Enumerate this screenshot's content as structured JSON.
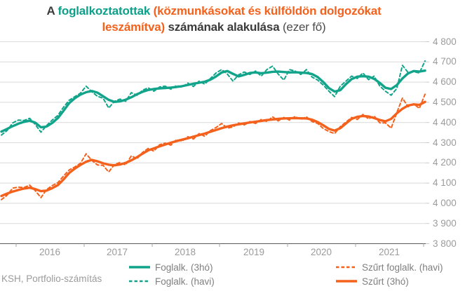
{
  "title": {
    "lines": [
      [
        {
          "text": "A ",
          "color": "#3b3b3b",
          "bold": true
        },
        {
          "text": "foglalkoztatottak",
          "color": "#0ba18a",
          "bold": true
        },
        {
          "text": " (közmunkásokat és külföldön dolgozókat",
          "color": "#f4611c",
          "bold": true
        }
      ],
      [
        {
          "text": "leszámítva)",
          "color": "#f4611c",
          "bold": true
        },
        {
          "text": " számának alakulása",
          "color": "#3b3b3b",
          "bold": true
        },
        {
          "text": " (ezer fő)",
          "color": "#4d4d4d",
          "bold": false
        }
      ]
    ]
  },
  "source": "KSH, Portfolio-számítás",
  "chart_data": {
    "type": "line",
    "x_unit": "month",
    "x_start": "2015-04",
    "x_end": "2021-07",
    "x_tick_labels": [
      "2016",
      "2017",
      "2018",
      "2019",
      "2020",
      "2021"
    ],
    "y_tick_labels": [
      "4 800",
      "4 700",
      "4 600",
      "4 500",
      "4 400",
      "4 300",
      "4 200",
      "4 100",
      "4 000",
      "3 900",
      "3 800"
    ],
    "ylim": [
      3800,
      4800
    ],
    "grid": "horizontal-only",
    "legend_position": "bottom",
    "colors": {
      "teal": "#12a48b",
      "orange": "#f4611c",
      "grid": "#d9d9d9",
      "axis": "#595959",
      "tick_text": "#9b9b9b"
    },
    "series": [
      {
        "name": "Foglalk. (havi)",
        "color": "#12a48b",
        "style": "dashed",
        "values": [
          4338,
          4360,
          4398,
          4412,
          4410,
          4421,
          4390,
          4352,
          4385,
          4412,
          4435,
          4476,
          4510,
          4528,
          4545,
          4580,
          4552,
          4530,
          4520,
          4472,
          4505,
          4516,
          4505,
          4548,
          4535,
          4560,
          4572,
          4555,
          4576,
          4580,
          4565,
          4583,
          4575,
          4595,
          4578,
          4605,
          4590,
          4618,
          4645,
          4662,
          4640,
          4605,
          4636,
          4650,
          4638,
          4655,
          4630,
          4662,
          4679,
          4640,
          4610,
          4662,
          4655,
          4638,
          4662,
          4625,
          4610,
          4585,
          4555,
          4528,
          4580,
          4605,
          4630,
          4618,
          4645,
          4612,
          4630,
          4580,
          4555,
          4535,
          4568,
          4683,
          4648,
          4652,
          4645,
          4705
        ]
      },
      {
        "name": "Szűrt foglalk. (havi)",
        "color": "#f4611c",
        "style": "dashed",
        "values": [
          4018,
          4040,
          4075,
          4080,
          4078,
          4090,
          4062,
          4028,
          4068,
          4088,
          4102,
          4135,
          4165,
          4180,
          4198,
          4245,
          4212,
          4190,
          4188,
          4155,
          4192,
          4202,
          4190,
          4235,
          4220,
          4252,
          4272,
          4258,
          4290,
          4298,
          4288,
          4315,
          4308,
          4330,
          4318,
          4345,
          4332,
          4360,
          4375,
          4395,
          4372,
          4378,
          4398,
          4388,
          4405,
          4395,
          4415,
          4405,
          4428,
          4408,
          4425,
          4412,
          4430,
          4415,
          4428,
          4405,
          4395,
          4370,
          4355,
          4345,
          4380,
          4402,
          4425,
          4415,
          4440,
          4418,
          4432,
          4398,
          4398,
          4372,
          4448,
          4521,
          4478,
          4492,
          4470,
          4540
        ]
      },
      {
        "name": "Foglalk. (3hó)",
        "color": "#12a48b",
        "style": "solid",
        "values": [
          4355,
          4368,
          4382,
          4394,
          4403,
          4409,
          4399,
          4376,
          4380,
          4398,
          4422,
          4458,
          4496,
          4520,
          4538,
          4550,
          4556,
          4548,
          4530,
          4512,
          4502,
          4505,
          4513,
          4525,
          4540,
          4552,
          4561,
          4566,
          4569,
          4571,
          4573,
          4576,
          4580,
          4586,
          4592,
          4597,
          4602,
          4612,
          4628,
          4648,
          4655,
          4641,
          4628,
          4636,
          4645,
          4648,
          4644,
          4647,
          4651,
          4652,
          4650,
          4648,
          4649,
          4647,
          4645,
          4640,
          4625,
          4600,
          4570,
          4553,
          4560,
          4590,
          4615,
          4627,
          4629,
          4627,
          4616,
          4596,
          4572,
          4566,
          4585,
          4618,
          4643,
          4655,
          4652,
          4657
        ]
      },
      {
        "name": "Szűrt (3hó)",
        "color": "#f4611c",
        "style": "solid",
        "values": [
          4036,
          4048,
          4058,
          4066,
          4073,
          4077,
          4070,
          4060,
          4063,
          4075,
          4090,
          4118,
          4150,
          4172,
          4190,
          4206,
          4215,
          4208,
          4198,
          4191,
          4188,
          4192,
          4200,
          4213,
          4228,
          4246,
          4262,
          4272,
          4282,
          4291,
          4300,
          4308,
          4315,
          4322,
          4330,
          4338,
          4345,
          4354,
          4363,
          4372,
          4380,
          4386,
          4391,
          4396,
          4400,
          4404,
          4408,
          4412,
          4415,
          4418,
          4420,
          4421,
          4422,
          4421,
          4420,
          4414,
          4402,
          4386,
          4368,
          4360,
          4372,
          4395,
          4418,
          4428,
          4432,
          4430,
          4422,
          4412,
          4406,
          4418,
          4445,
          4468,
          4484,
          4490,
          4487,
          4502
        ]
      }
    ],
    "legend": {
      "columns": [
        [
          {
            "label": "Foglalk. (3hó)",
            "color": "#12a48b",
            "style": "solid"
          },
          {
            "label": "Foglalk. (havi)",
            "color": "#12a48b",
            "style": "dashed"
          }
        ],
        [
          {
            "label": "Szűrt foglalk. (havi)",
            "color": "#f4611c",
            "style": "dashed"
          },
          {
            "label": "Szűrt (3hó)",
            "color": "#f4611c",
            "style": "solid"
          }
        ]
      ]
    }
  }
}
